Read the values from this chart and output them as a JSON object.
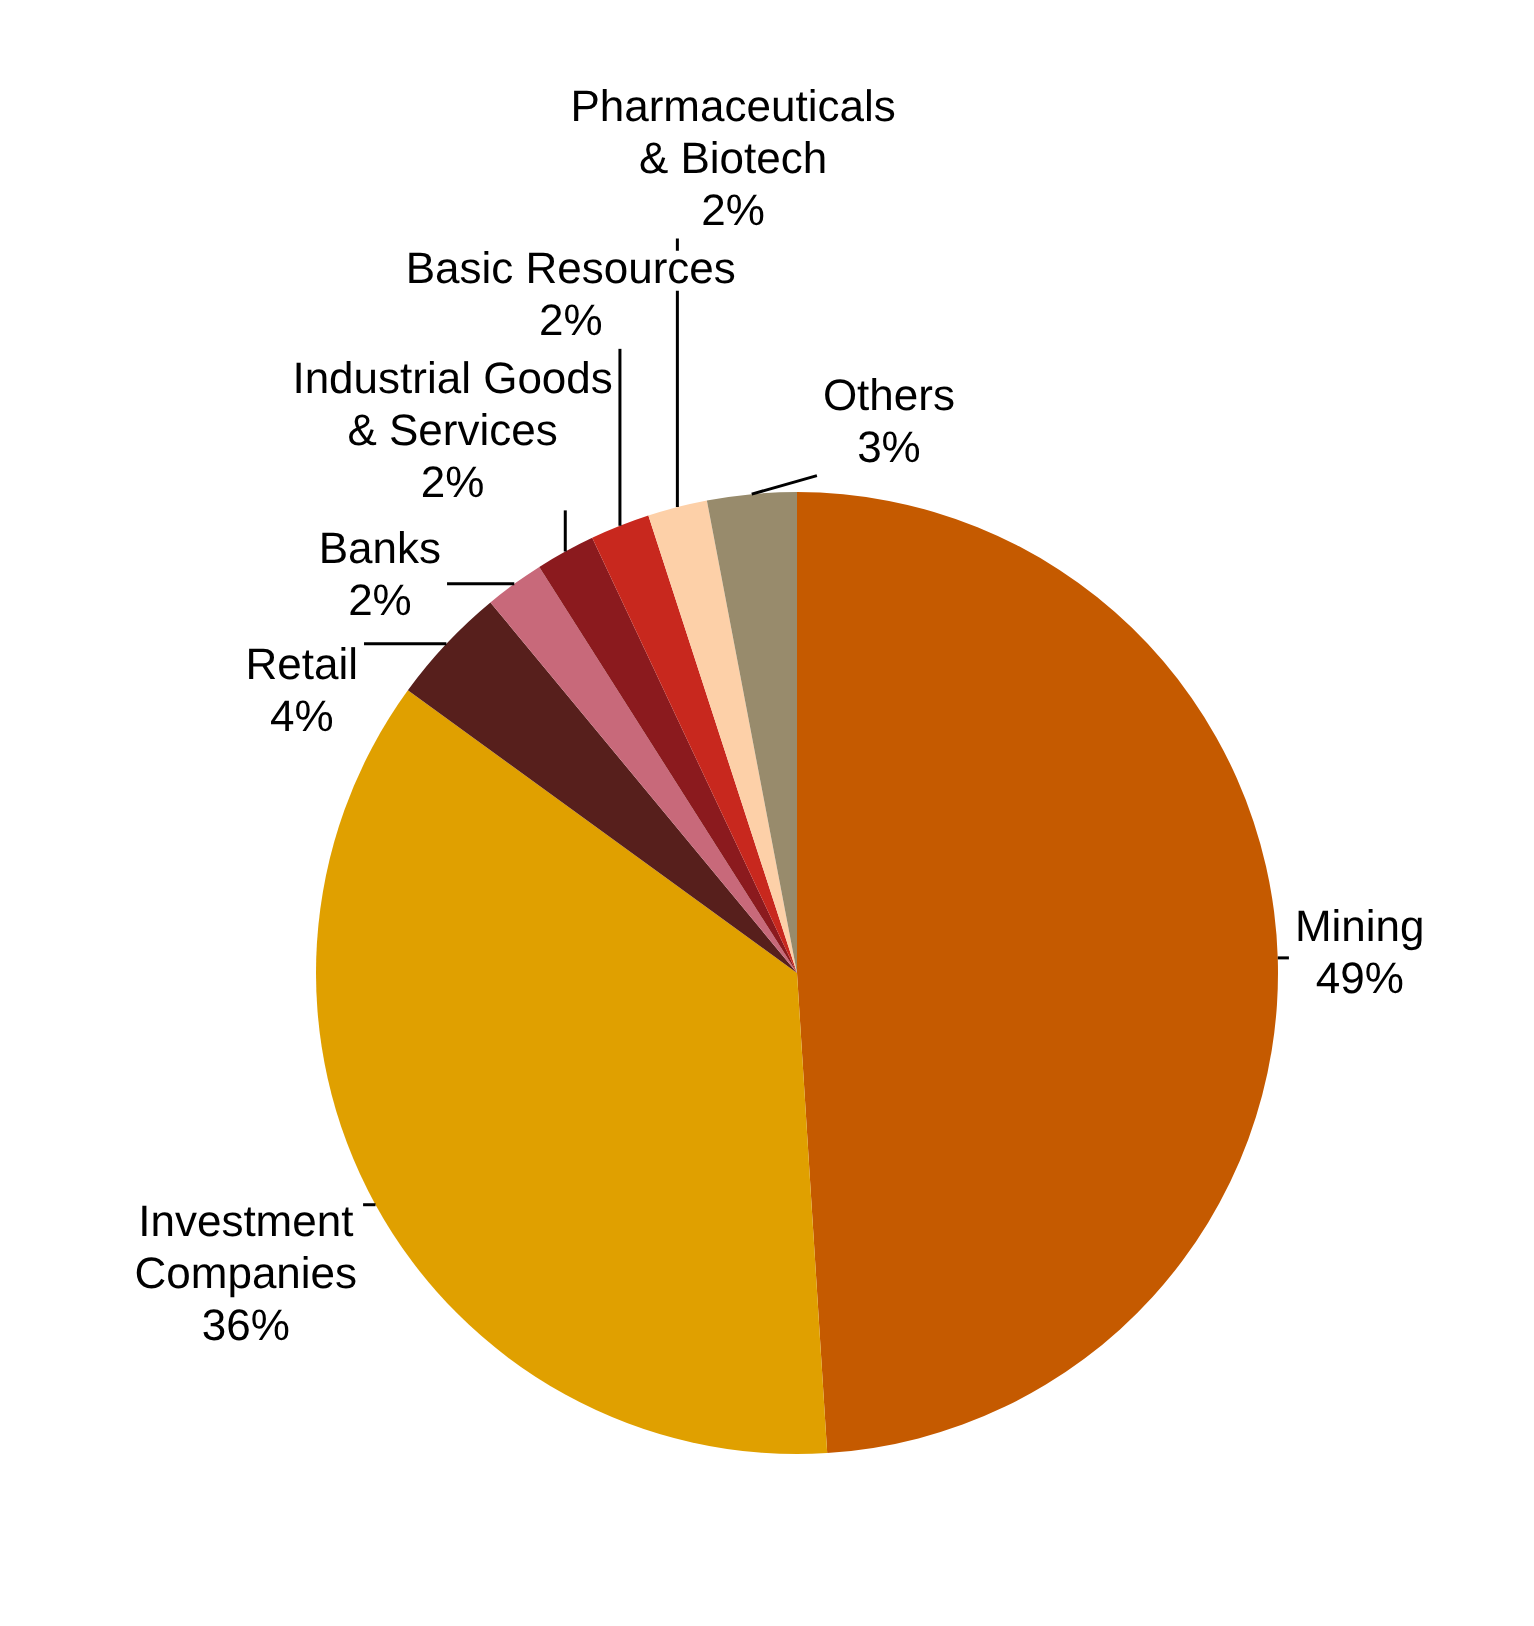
{
  "chart_data": {
    "type": "pie",
    "categories": [
      "Mining",
      "Investment Companies",
      "Retail",
      "Banks",
      "Industrial Goods & Services",
      "Basic Resources",
      "Pharmaceuticals & Biotech",
      "Others"
    ],
    "values": [
      49,
      36,
      4,
      2,
      2,
      2,
      2,
      3
    ],
    "value_labels": [
      "49%",
      "36%",
      "4%",
      "2%",
      "2%",
      "2%",
      "2%",
      "3%"
    ],
    "colors": [
      "#c55a00",
      "#e0a000",
      "#571f1c",
      "#c8697a",
      "#8b1a1e",
      "#c8281e",
      "#fdd0a8",
      "#988b6c"
    ],
    "legend": false
  }
}
